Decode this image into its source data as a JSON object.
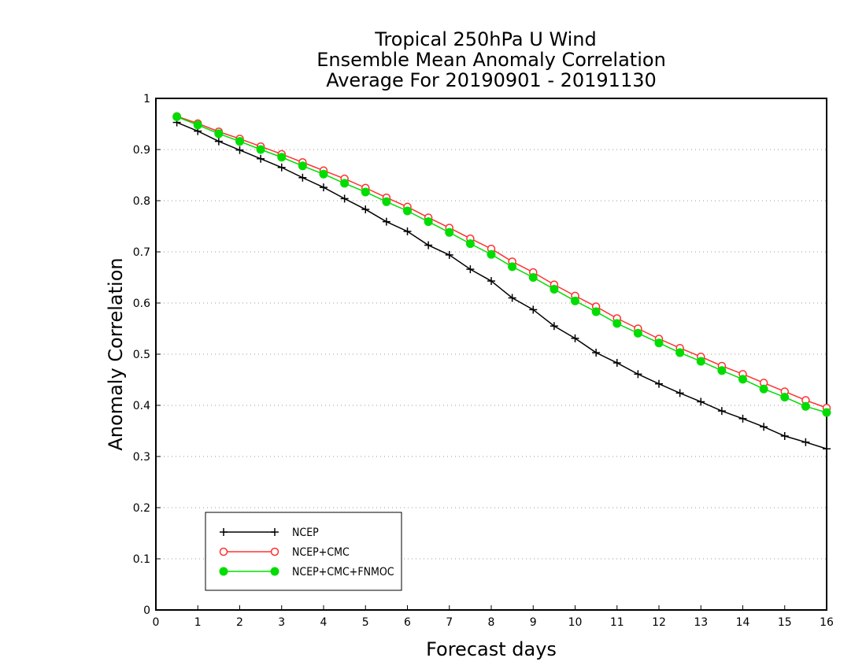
{
  "chart_data": {
    "type": "line",
    "title": [
      "Tropical 250hPa U Wind",
      "Ensemble Mean Anomaly Correlation",
      "Average For 20190901 - 20191130"
    ],
    "xlabel": "Forecast days",
    "ylabel": "Anomaly Correlation",
    "xlim": [
      0,
      16
    ],
    "ylim": [
      0,
      1
    ],
    "xticks": [
      "0",
      "1",
      "2",
      "3",
      "4",
      "5",
      "6",
      "7",
      "8",
      "9",
      "10",
      "11",
      "12",
      "13",
      "14",
      "15",
      "16"
    ],
    "yticks": [
      "0",
      "0.1",
      "0.2",
      "0.3",
      "0.4",
      "0.5",
      "0.6",
      "0.7",
      "0.8",
      "0.9",
      "1"
    ],
    "grid": "horizontal dotted",
    "legend_position": "bottom-left",
    "x": [
      0.5,
      1,
      1.5,
      2,
      2.5,
      3,
      3.5,
      4,
      4.5,
      5,
      5.5,
      6,
      6.5,
      7,
      7.5,
      8,
      8.5,
      9,
      9.5,
      10,
      10.5,
      11,
      11.5,
      12,
      12.5,
      13,
      13.5,
      14,
      14.5,
      15,
      15.5,
      16
    ],
    "series": [
      {
        "name": "NCEP",
        "color": "#000000",
        "marker": "plus",
        "values": [
          0.953,
          0.936,
          0.916,
          0.899,
          0.882,
          0.865,
          0.845,
          0.826,
          0.804,
          0.783,
          0.759,
          0.74,
          0.713,
          0.694,
          0.666,
          0.643,
          0.61,
          0.587,
          0.555,
          0.531,
          0.503,
          0.483,
          0.461,
          0.442,
          0.424,
          0.407,
          0.389,
          0.374,
          0.358,
          0.34,
          0.328,
          0.315
        ]
      },
      {
        "name": "NCEP+CMC",
        "color": "#ff3030",
        "marker": "open-circle",
        "values": [
          0.965,
          0.951,
          0.935,
          0.921,
          0.906,
          0.891,
          0.875,
          0.859,
          0.843,
          0.825,
          0.806,
          0.788,
          0.767,
          0.747,
          0.726,
          0.706,
          0.681,
          0.66,
          0.636,
          0.614,
          0.593,
          0.57,
          0.55,
          0.53,
          0.512,
          0.495,
          0.477,
          0.461,
          0.444,
          0.427,
          0.41,
          0.395
        ]
      },
      {
        "name": "NCEP+CMC+FNMOC",
        "color": "#00dd00",
        "marker": "filled-circle",
        "values": [
          0.964,
          0.948,
          0.931,
          0.916,
          0.9,
          0.885,
          0.868,
          0.852,
          0.834,
          0.817,
          0.798,
          0.78,
          0.759,
          0.738,
          0.716,
          0.695,
          0.671,
          0.65,
          0.627,
          0.604,
          0.583,
          0.56,
          0.541,
          0.522,
          0.503,
          0.486,
          0.468,
          0.451,
          0.432,
          0.416,
          0.398,
          0.386
        ]
      }
    ]
  }
}
